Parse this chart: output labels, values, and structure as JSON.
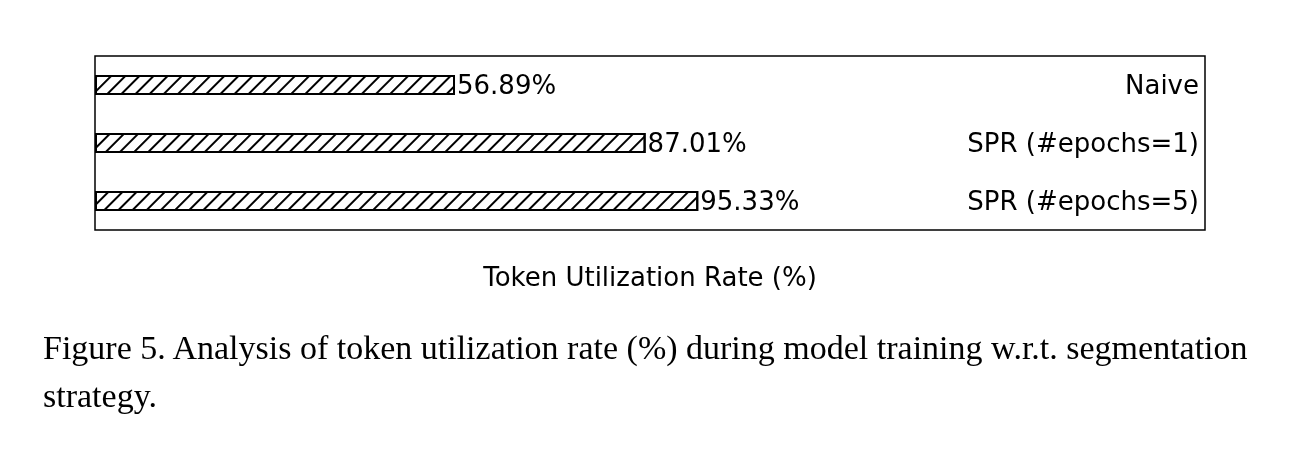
{
  "chart_data": {
    "type": "bar",
    "orientation": "horizontal",
    "relative": false,
    "categories": [
      "Naive",
      "SPR (#epochs=1)",
      "SPR (#epochs=5)"
    ],
    "values": [
      56.89,
      87.01,
      95.33
    ],
    "value_labels": [
      "56.89%",
      "87.01%",
      "95.33%"
    ],
    "color": "#ffffff",
    "xlabel": "Token Utilization Rate (%)",
    "grid": false,
    "tick_labels": "y",
    "annotations": [
      "Figure 5. Analysis of token utilization rate (%) during model training w.r.t. segmentation strategy."
    ]
  }
}
